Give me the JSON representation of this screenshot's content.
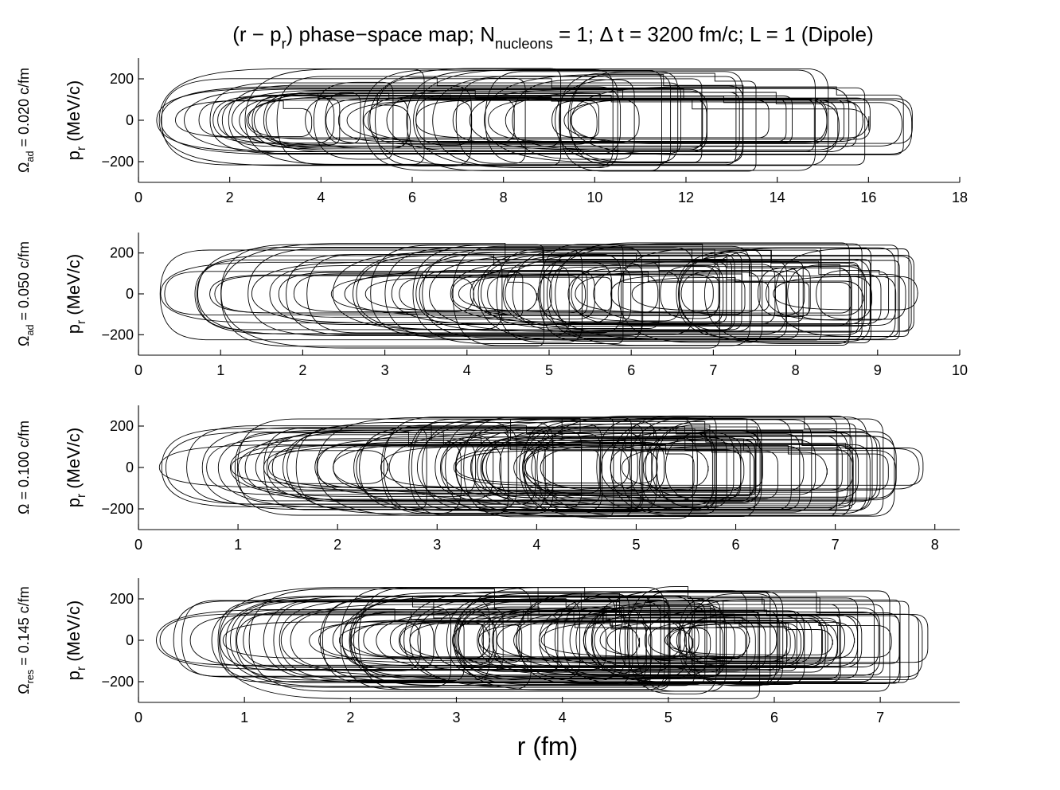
{
  "figure": {
    "title_pre": "(r − p",
    "title_sub1": "r",
    "title_mid": ") phase−space map; N",
    "title_sub2": "nucleons",
    "title_post": " = 1; Δ t = 3200 fm/c; L = 1 (Dipole)",
    "xlabel": "r (fm)"
  },
  "chart_data": [
    {
      "type": "line",
      "row_label_main": "Ω",
      "row_label_sub": "ad",
      "row_label_rest": " = 0.020 c/fm",
      "ylabel_main": "p",
      "ylabel_sub": "r",
      "ylabel_rest": " (MeV/c)",
      "xlim": [
        0,
        18
      ],
      "ylim": [
        -300,
        300
      ],
      "xticks": [
        "0",
        "2",
        "4",
        "6",
        "8",
        "10",
        "12",
        "14",
        "16",
        "18"
      ],
      "yticks": [
        "200",
        "0",
        "−200"
      ],
      "ytick_values": [
        200,
        0,
        -200
      ],
      "r_inner_range": [
        0.2,
        9.5
      ],
      "r_outer_range": [
        2.0,
        17.2
      ],
      "p_amplitude_range": [
        90,
        255
      ],
      "orbit_count": 55
    },
    {
      "type": "line",
      "row_label_main": "Ω",
      "row_label_sub": "ad",
      "row_label_rest": " = 0.050 c/fm",
      "ylabel_main": "p",
      "ylabel_sub": "r",
      "ylabel_rest": " (MeV/c)",
      "xlim": [
        0,
        10
      ],
      "ylim": [
        -300,
        300
      ],
      "xticks": [
        "0",
        "1",
        "2",
        "3",
        "4",
        "5",
        "6",
        "7",
        "8",
        "9",
        "10"
      ],
      "yticks": [
        "200",
        "0",
        "−200"
      ],
      "ytick_values": [
        200,
        0,
        -200
      ],
      "r_inner_range": [
        0.15,
        8.4
      ],
      "r_outer_range": [
        2.0,
        9.5
      ],
      "p_amplitude_range": [
        80,
        250
      ],
      "orbit_count": 70
    },
    {
      "type": "line",
      "row_label_main": "Ω",
      "row_label_sub": "",
      "row_label_rest": " = 0.100 c/fm",
      "ylabel_main": "p",
      "ylabel_sub": "r",
      "ylabel_rest": " (MeV/c)",
      "xlim": [
        0,
        8.25
      ],
      "ylim": [
        -300,
        300
      ],
      "xticks": [
        "0",
        "1",
        "2",
        "3",
        "4",
        "5",
        "6",
        "7",
        "8"
      ],
      "yticks": [
        "200",
        "0",
        "−200"
      ],
      "ytick_values": [
        200,
        0,
        -200
      ],
      "r_inner_range": [
        0.2,
        5.5
      ],
      "r_outer_range": [
        2.5,
        8.0
      ],
      "p_amplitude_range": [
        80,
        250
      ],
      "orbit_count": 80
    },
    {
      "type": "line",
      "row_label_main": "Ω",
      "row_label_sub": "res",
      "row_label_rest": " = 0.145 c/fm",
      "ylabel_main": "p",
      "ylabel_sub": "r",
      "ylabel_rest": " (MeV/c)",
      "xlim": [
        0,
        7.75
      ],
      "ylim": [
        -300,
        300
      ],
      "xticks": [
        "0",
        "1",
        "2",
        "3",
        "4",
        "5",
        "6",
        "7"
      ],
      "yticks": [
        "200",
        "0",
        "−200"
      ],
      "ytick_values": [
        200,
        0,
        -200
      ],
      "r_inner_range": [
        0.05,
        5.2
      ],
      "r_outer_range": [
        2.5,
        7.5
      ],
      "p_amplitude_range": [
        80,
        260
      ],
      "orbit_count": 95
    }
  ]
}
